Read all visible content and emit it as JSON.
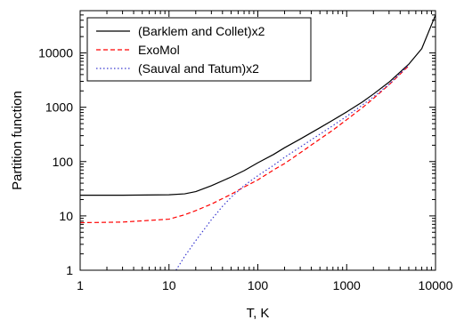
{
  "chart_data": {
    "type": "line",
    "title": "",
    "xlabel": "T, K",
    "ylabel": "Partition function",
    "xscale": "log",
    "yscale": "log",
    "xlim": [
      1,
      10000
    ],
    "ylim": [
      1,
      60000
    ],
    "grid": false,
    "legend_position": "top-left",
    "x_ticks": [
      1,
      10,
      100,
      1000,
      10000
    ],
    "x_tick_labels": [
      "1",
      "10",
      "100",
      "1000",
      "10000"
    ],
    "y_ticks": [
      1,
      10,
      100,
      1000,
      10000
    ],
    "y_tick_labels": [
      "1",
      "10",
      "100",
      "1000",
      "10000"
    ],
    "series": [
      {
        "name": "(Barklem and Collet)x2",
        "color": "#000000",
        "style": "solid",
        "points": [
          [
            1,
            24
          ],
          [
            3,
            24
          ],
          [
            10,
            24.5
          ],
          [
            15,
            25.5
          ],
          [
            20,
            28
          ],
          [
            30,
            36
          ],
          [
            50,
            52
          ],
          [
            70,
            68
          ],
          [
            100,
            95
          ],
          [
            150,
            135
          ],
          [
            200,
            180
          ],
          [
            300,
            260
          ],
          [
            500,
            420
          ],
          [
            700,
            580
          ],
          [
            1000,
            820
          ],
          [
            1500,
            1250
          ],
          [
            2000,
            1750
          ],
          [
            3000,
            2900
          ],
          [
            5000,
            6200
          ],
          [
            7000,
            12000
          ],
          [
            10000,
            50000
          ]
        ]
      },
      {
        "name": "ExoMol",
        "color": "#ff0000",
        "style": "dashed",
        "points": [
          [
            1,
            7.5
          ],
          [
            3,
            7.7
          ],
          [
            10,
            8.7
          ],
          [
            15,
            10.5
          ],
          [
            20,
            12.5
          ],
          [
            30,
            16.5
          ],
          [
            50,
            25
          ],
          [
            70,
            34
          ],
          [
            100,
            46
          ],
          [
            150,
            70
          ],
          [
            200,
            92
          ],
          [
            300,
            145
          ],
          [
            500,
            260
          ],
          [
            700,
            380
          ],
          [
            1000,
            590
          ],
          [
            1500,
            980
          ],
          [
            2000,
            1450
          ],
          [
            3000,
            2600
          ],
          [
            5000,
            5800
          ]
        ]
      },
      {
        "name": "(Sauval and Tatum)x2",
        "color": "#3a3ad0",
        "style": "dotted",
        "points": [
          [
            12,
            1
          ],
          [
            15,
            1.8
          ],
          [
            20,
            3.5
          ],
          [
            30,
            8.5
          ],
          [
            40,
            15
          ],
          [
            50,
            22
          ],
          [
            70,
            36
          ],
          [
            100,
            55
          ],
          [
            150,
            85
          ],
          [
            200,
            120
          ],
          [
            300,
            185
          ],
          [
            500,
            320
          ],
          [
            700,
            460
          ],
          [
            1000,
            680
          ],
          [
            1500,
            1100
          ],
          [
            2000,
            1550
          ],
          [
            3000,
            2650
          ],
          [
            5000,
            6000
          ]
        ]
      }
    ]
  }
}
